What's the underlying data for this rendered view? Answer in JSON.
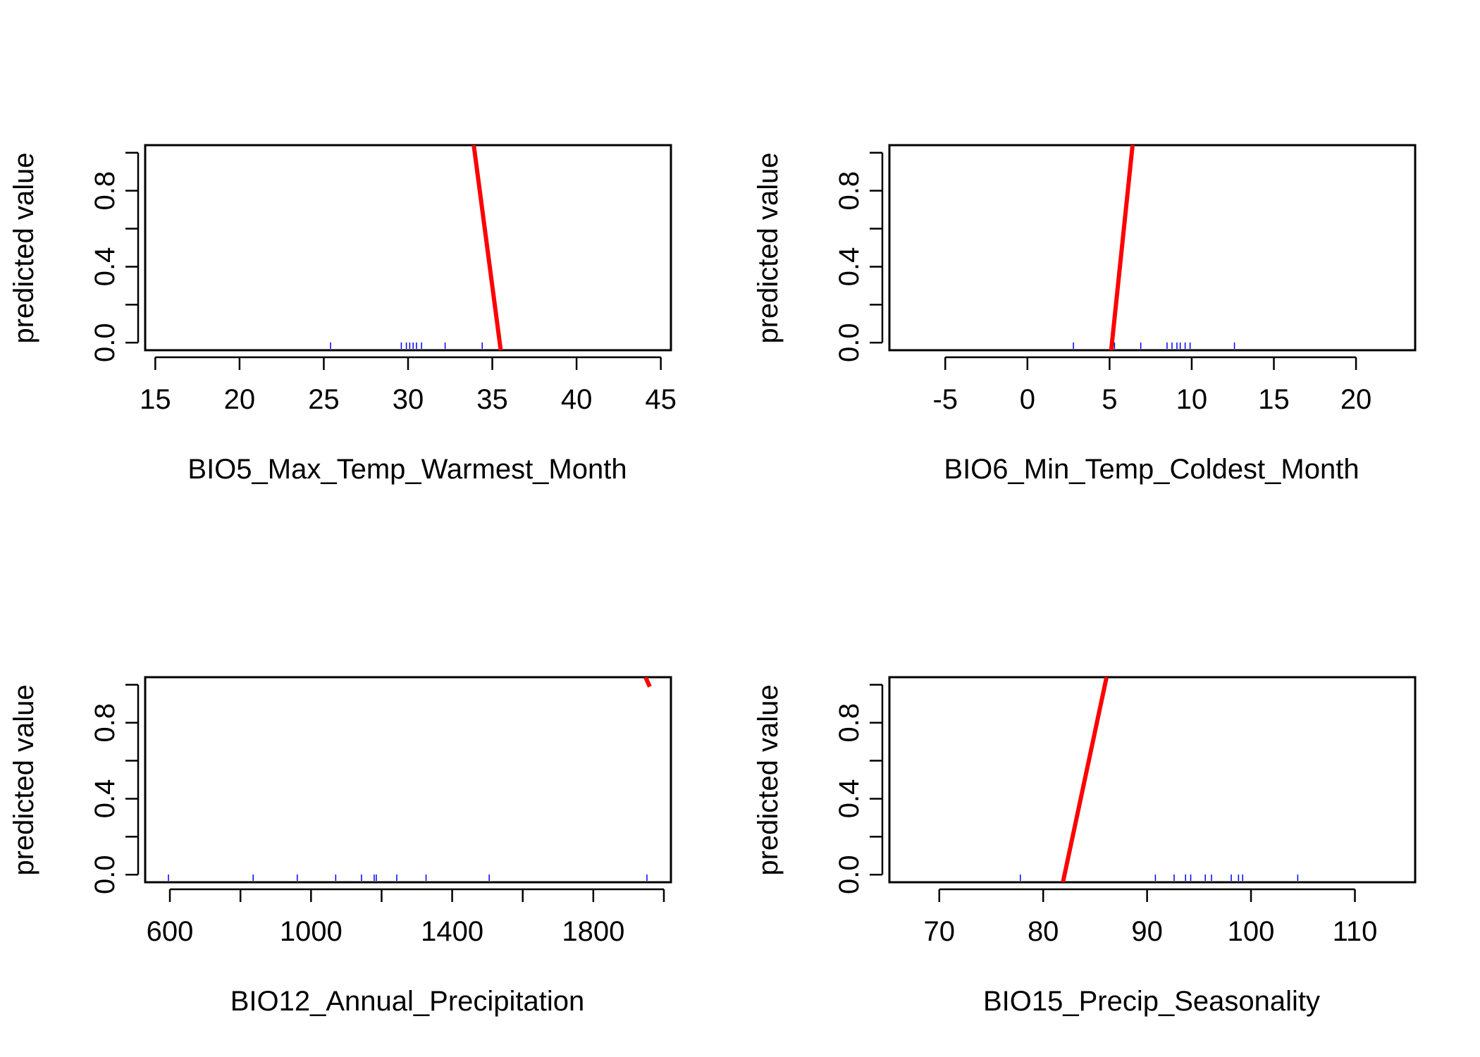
{
  "chart_data": [
    {
      "type": "line",
      "xlabel": "BIO5_Max_Temp_Warmest_Month",
      "ylabel": "predicted value",
      "xlim": [
        14.4,
        45.6
      ],
      "ylim": [
        -0.04,
        1.04
      ],
      "xticks": [
        15,
        20,
        25,
        30,
        35,
        40,
        45
      ],
      "yticks": [
        0.0,
        0.2,
        0.4,
        0.6,
        0.8,
        1.0
      ],
      "ytick_labels": [
        "0.0",
        "",
        "0.4",
        "",
        "0.8",
        ""
      ],
      "series": [
        {
          "x": [
            33.9,
            35.5
          ],
          "y": [
            1.04,
            -0.04
          ]
        }
      ],
      "rug": [
        25.4,
        29.6,
        29.9,
        30.1,
        30.3,
        30.5,
        30.8,
        32.2,
        34.4
      ],
      "line_color": "#ff0000",
      "rug_color": "#0000ff",
      "grid": false
    },
    {
      "type": "line",
      "xlabel": "BIO6_Min_Temp_Coldest_Month",
      "ylabel": "predicted value",
      "xlim": [
        -8.4,
        23.6
      ],
      "ylim": [
        -0.04,
        1.04
      ],
      "xticks": [
        -5,
        0,
        5,
        10,
        15,
        20
      ],
      "yticks": [
        0.0,
        0.2,
        0.4,
        0.6,
        0.8,
        1.0
      ],
      "ytick_labels": [
        "0.0",
        "",
        "0.4",
        "",
        "0.8",
        ""
      ],
      "series": [
        {
          "x": [
            5.1,
            6.4
          ],
          "y": [
            -0.04,
            1.04
          ]
        }
      ],
      "rug": [
        2.8,
        5.3,
        6.9,
        8.5,
        8.8,
        9.1,
        9.3,
        9.6,
        9.9,
        12.6
      ],
      "line_color": "#ff0000",
      "rug_color": "#0000ff",
      "grid": false
    },
    {
      "type": "line",
      "xlabel": "BIO12_Annual_Precipitation",
      "ylabel": "predicted value",
      "xlim": [
        530,
        2020
      ],
      "ylim": [
        -0.04,
        1.04
      ],
      "xticks": [
        600,
        800,
        1000,
        1200,
        1400,
        1600,
        1800,
        2000
      ],
      "xtick_labels": [
        "600",
        "",
        "1000",
        "",
        "1400",
        "",
        "1800",
        ""
      ],
      "yticks": [
        0.0,
        0.2,
        0.4,
        0.6,
        0.8,
        1.0
      ],
      "ytick_labels": [
        "0.0",
        "",
        "0.4",
        "",
        "0.8",
        ""
      ],
      "series": [
        {
          "x": [
            1948,
            1960
          ],
          "y": [
            1.04,
            0.99
          ]
        }
      ],
      "rug": [
        596,
        836,
        961,
        1070,
        1143,
        1179,
        1185,
        1243,
        1326,
        1505,
        1952
      ],
      "line_color": "#ff0000",
      "rug_color": "#0000ff",
      "grid": false
    },
    {
      "type": "line",
      "xlabel": "BIO15_Precip_Seasonality",
      "ylabel": "predicted value",
      "xlim": [
        65.2,
        115.8
      ],
      "ylim": [
        -0.04,
        1.04
      ],
      "xticks": [
        70,
        80,
        90,
        100,
        110
      ],
      "yticks": [
        0.0,
        0.2,
        0.4,
        0.6,
        0.8,
        1.0
      ],
      "ytick_labels": [
        "0.0",
        "",
        "0.4",
        "",
        "0.8",
        ""
      ],
      "series": [
        {
          "x": [
            81.9,
            86.1
          ],
          "y": [
            -0.04,
            1.04
          ]
        }
      ],
      "rug": [
        77.8,
        90.8,
        92.6,
        93.7,
        94.2,
        95.6,
        96.2,
        98.1,
        98.8,
        99.2,
        104.5
      ],
      "line_color": "#ff0000",
      "rug_color": "#0000ff",
      "grid": false
    }
  ]
}
